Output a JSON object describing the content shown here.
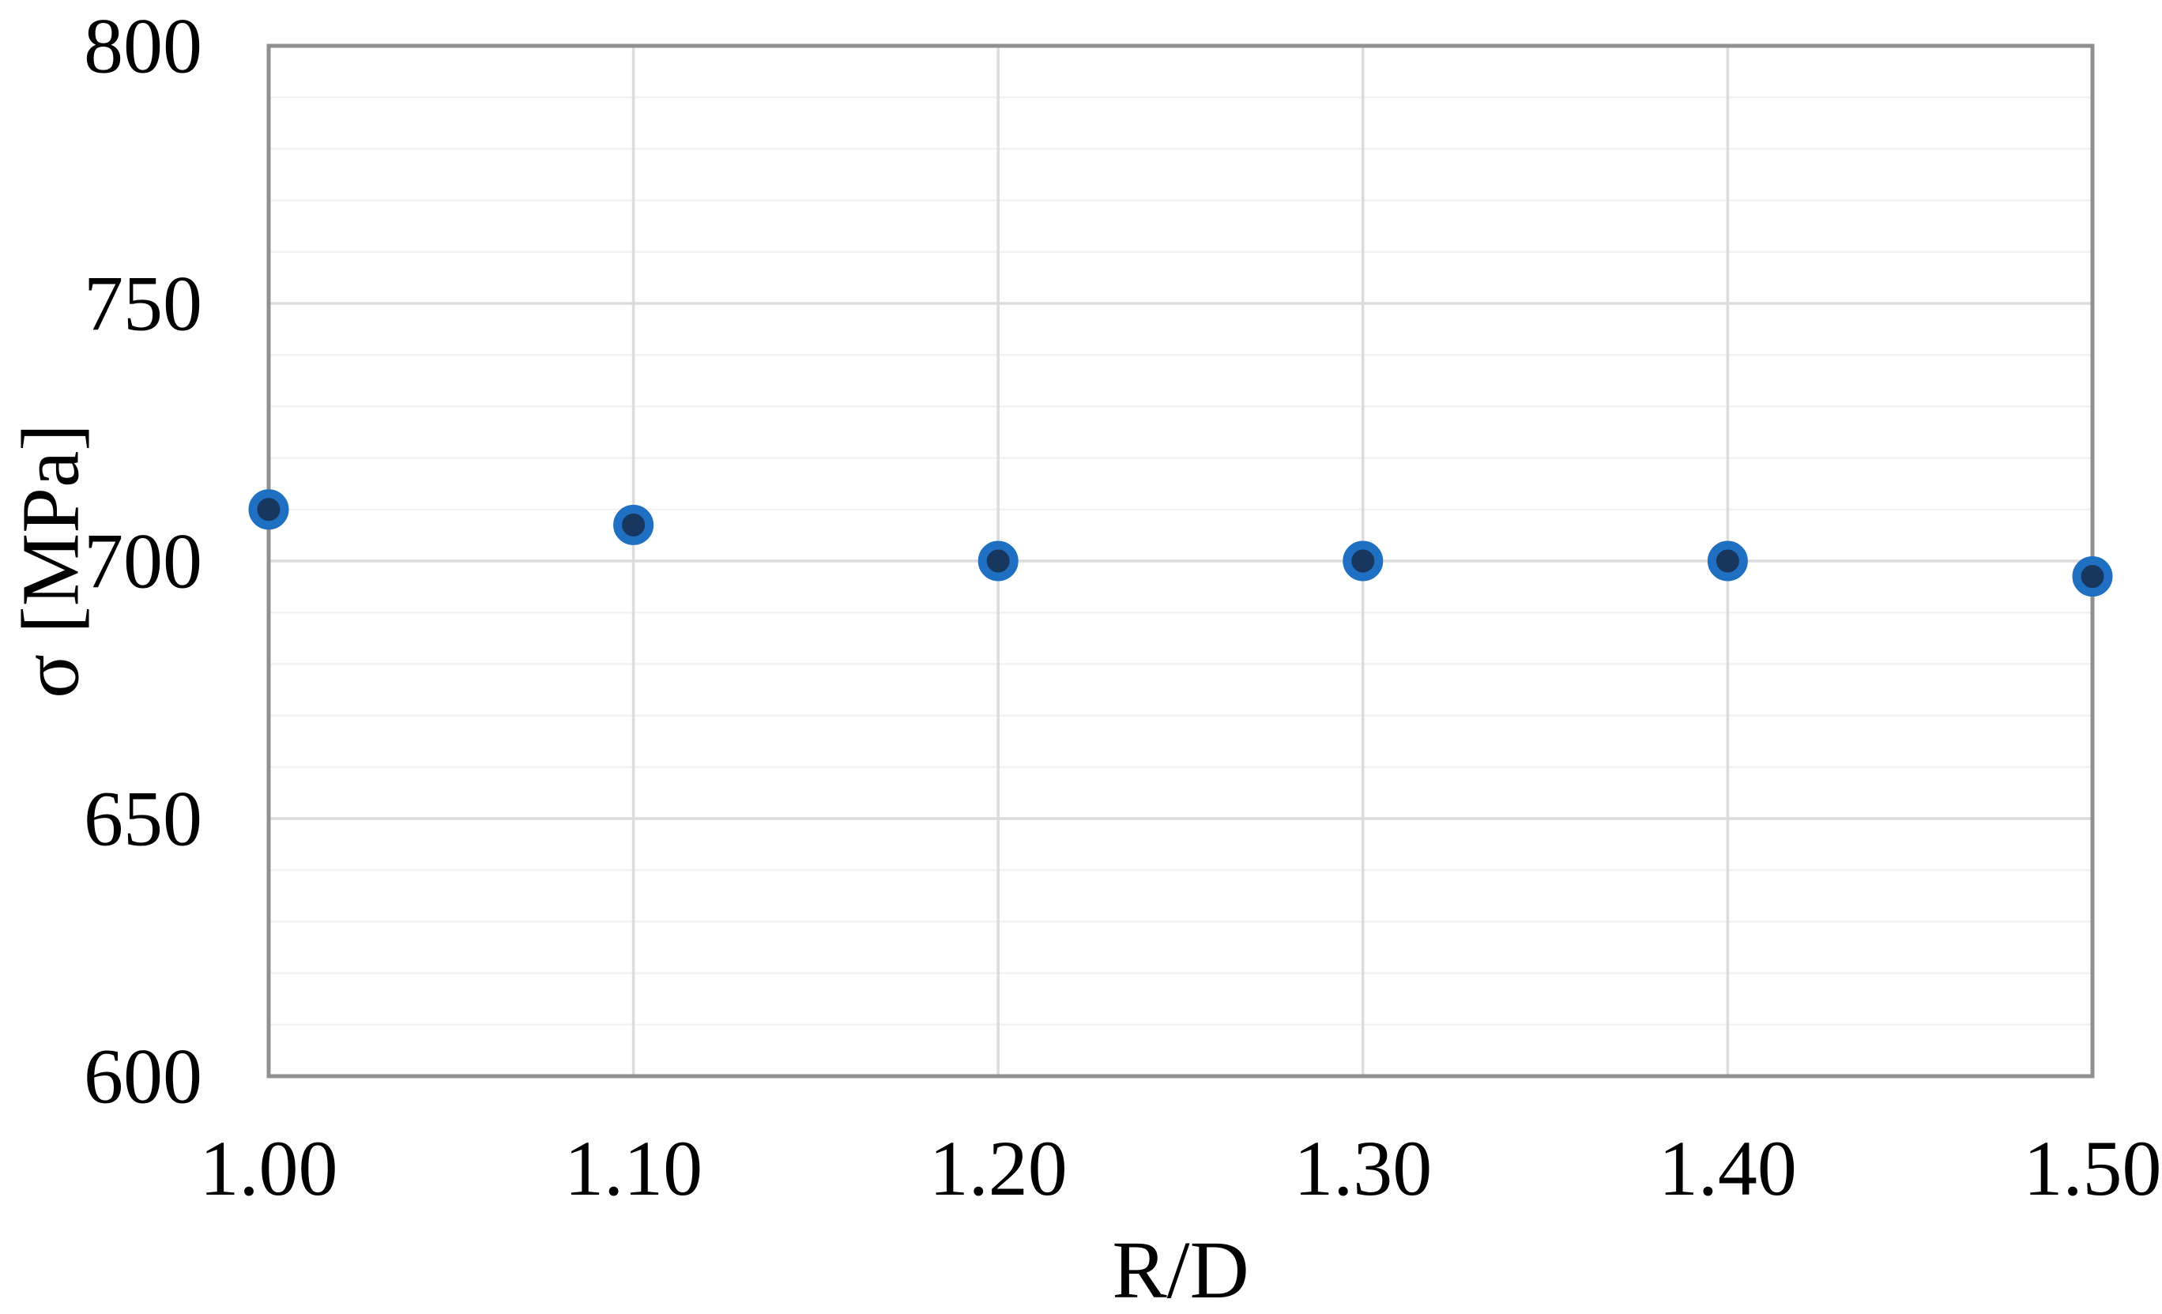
{
  "chart_data": {
    "type": "scatter",
    "title": "",
    "xlabel": "R/D",
    "ylabel": "σ [MPa]",
    "x": [
      1.0,
      1.1,
      1.2,
      1.3,
      1.4,
      1.5
    ],
    "values": [
      710,
      707,
      700,
      700,
      700,
      697
    ],
    "xlim": [
      1.0,
      1.5
    ],
    "ylim": [
      600,
      800
    ],
    "x_ticks": [
      "1.00",
      "1.10",
      "1.20",
      "1.30",
      "1.40",
      "1.50"
    ],
    "x_tick_values": [
      1.0,
      1.1,
      1.2,
      1.3,
      1.4,
      1.5
    ],
    "y_ticks": [
      "600",
      "650",
      "700",
      "750",
      "800"
    ],
    "y_tick_values": [
      600,
      650,
      700,
      750,
      800
    ],
    "y_minor_step": 10,
    "grid": "major-and-minor-horizontal, major-vertical",
    "legend": "none",
    "marker": "circle"
  },
  "colors": {
    "marker_fill": "#17375E",
    "marker_border": "#1F6FC2",
    "gridline_major": "#DCDCDC",
    "gridline_minor": "#F2F2F2",
    "axis_border": "#909090",
    "text": "#000000",
    "background": "#FFFFFF"
  }
}
